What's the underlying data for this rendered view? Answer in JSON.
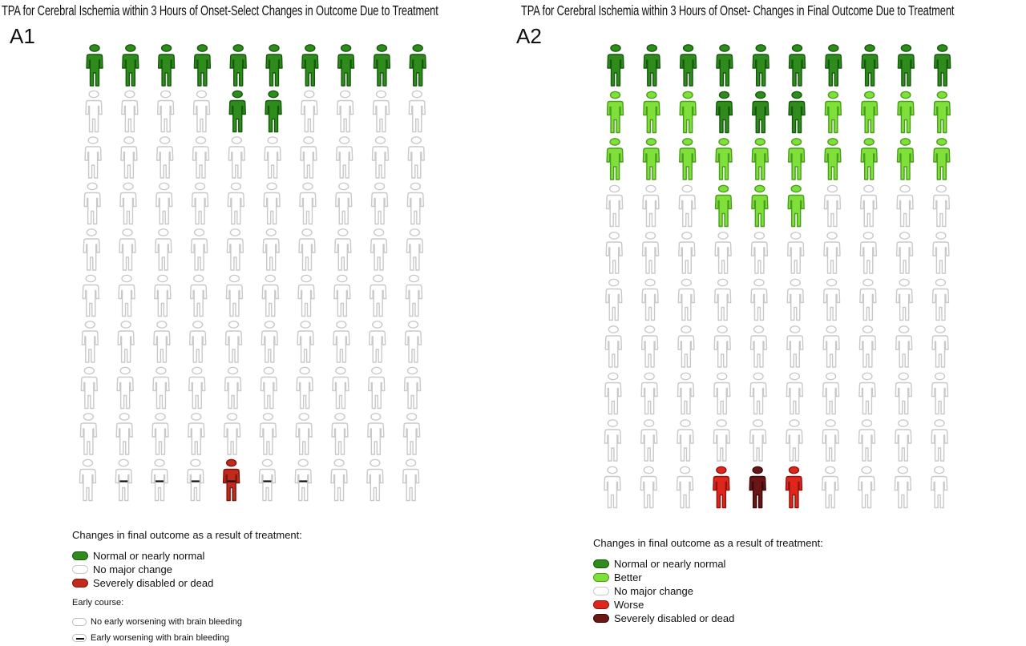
{
  "colors": {
    "normal_fill": "#2f8c1c",
    "normal_stroke": "#145a0c",
    "better_fill": "#7fe03a",
    "better_stroke": "#4a9e1e",
    "nochange_fill": "#ffffff",
    "nochange_stroke": "#c9c9c9",
    "worse_fill": "#e0261c",
    "worse_stroke": "#8e130c",
    "severe_fill": "#6a1616",
    "severe_stroke": "#3c0808",
    "a1_severe_fill": "#c22a1c",
    "a1_severe_stroke": "#7e150c",
    "dash": "#111111"
  },
  "panels": [
    {
      "id": "A1",
      "label": "A1",
      "title": "TPA for Cerebral Ischemia within 3 Hours of Onset-Select Changes in Outcome Due to Treatment",
      "rows": [
        "NNNNNNNNNN",
        "OOOONNOOOO",
        "OOOOOOOOOO",
        "OOOOOOOOOO",
        "OOOOOOOOOO",
        "OOOOOOOOOO",
        "OOOOOOOOOO",
        "OOOOOOOOOO",
        "OOOOOOOOOO",
        "OOOOOOOOOO"
      ],
      "overlays": {
        "severe": [
          [
            9,
            4
          ]
        ],
        "early_worsening": [
          [
            9,
            1
          ],
          [
            9,
            2
          ],
          [
            9,
            3
          ],
          [
            9,
            4
          ],
          [
            9,
            5
          ],
          [
            9,
            6
          ]
        ]
      },
      "legend": {
        "heading": "Changes in final outcome as a result of treatment:",
        "items": [
          {
            "key": "normal",
            "label": "Normal or nearly normal",
            "fill": "#2f8c1c",
            "stroke": "#145a0c"
          },
          {
            "key": "nochange",
            "label": "No major change",
            "fill": "#ffffff",
            "stroke": "#c9c9c9"
          },
          {
            "key": "severe",
            "label": "Severely disabled or dead",
            "fill": "#c22a1c",
            "stroke": "#7e150c"
          }
        ],
        "early_heading": "Early course:",
        "early_items": [
          {
            "key": "no-early-worsening",
            "label": "No early worsening with brain bleeding",
            "mark": false
          },
          {
            "key": "early-worsening",
            "label": "Early worsening with brain bleeding",
            "mark": true
          }
        ]
      }
    },
    {
      "id": "A2",
      "label": "A2",
      "title": "TPA for Cerebral Ischemia within 3 Hours of Onset- Changes in Final Outcome Due to Treatment",
      "rows": [
        "NNNNNNNNNN",
        "BBBNNNBBBB",
        "BBBBBBBBBB",
        "OOOBBBOOOO",
        "OOOOOOOOOO",
        "OOOOOOOOOO",
        "OOOOOOOOOO",
        "OOOOOOOOOO",
        "OOOOOOOOOO",
        "OOOWSWOOOO"
      ],
      "legend": {
        "heading": "Changes in final outcome as a result of treatment:",
        "items": [
          {
            "key": "normal",
            "label": "Normal or nearly normal",
            "fill": "#2f8c1c",
            "stroke": "#145a0c"
          },
          {
            "key": "better",
            "label": "Better",
            "fill": "#7fe03a",
            "stroke": "#4a9e1e"
          },
          {
            "key": "nochange",
            "label": "No major change",
            "fill": "#ffffff",
            "stroke": "#c9c9c9"
          },
          {
            "key": "worse",
            "label": "Worse",
            "fill": "#e0261c",
            "stroke": "#8e130c"
          },
          {
            "key": "severe",
            "label": "Severely disabled or dead",
            "fill": "#6a1616",
            "stroke": "#3c0808"
          }
        ]
      }
    }
  ]
}
